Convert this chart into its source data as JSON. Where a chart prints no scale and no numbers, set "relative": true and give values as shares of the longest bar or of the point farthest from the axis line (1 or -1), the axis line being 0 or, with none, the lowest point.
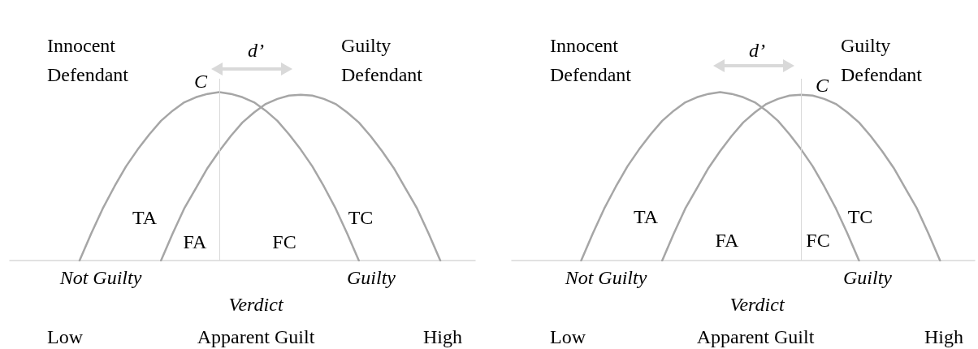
{
  "chart_data": [
    {
      "type": "line",
      "relative": true,
      "xlabel": "Apparent Guilt",
      "marker": "none",
      "categories": [
        null,
        null,
        null,
        null,
        null,
        null,
        null,
        null,
        null,
        null,
        null,
        null,
        null,
        null,
        null,
        null,
        null,
        null,
        null,
        null,
        null,
        null,
        null,
        null,
        null,
        null,
        null,
        null,
        null,
        null,
        null,
        null,
        null,
        null,
        null,
        null,
        null,
        null,
        null,
        null,
        null
      ],
      "series": [
        {
          "name": "Innocent Defendant",
          "color": "#a6a6a6",
          "values": [
            null,
            null,
            null,
            null,
            null,
            null,
            0,
            0.16,
            0.31,
            0.44,
            0.56,
            0.66,
            0.75,
            0.83,
            0.89,
            0.94,
            0.97,
            0.99,
            1,
            0.99,
            0.97,
            0.94,
            0.89,
            0.83,
            0.75,
            0.66,
            0.56,
            0.44,
            0.31,
            0.16,
            0,
            null,
            null,
            null,
            null,
            null,
            null,
            null,
            null,
            null,
            null
          ]
        },
        {
          "name": "Guilty Defendant",
          "color": "#a6a6a6",
          "values": [
            null,
            null,
            null,
            null,
            null,
            null,
            null,
            null,
            null,
            null,
            null,
            null,
            null,
            0,
            0.16,
            0.31,
            0.43,
            0.55,
            0.65,
            0.74,
            0.82,
            0.88,
            0.93,
            0.96,
            0.98,
            0.985,
            0.98,
            0.96,
            0.93,
            0.88,
            0.82,
            0.74,
            0.65,
            0.55,
            0.43,
            0.31,
            0.16,
            0,
            null,
            null,
            null
          ]
        }
      ],
      "annotations": [
        "d’",
        "TA",
        "FA",
        "FC",
        "TC",
        "Not Guilty",
        "Guilty",
        "Verdict",
        "Low",
        "High",
        "C"
      ]
    },
    {
      "type": "line",
      "relative": true,
      "xlabel": "Apparent Guilt",
      "marker": "none",
      "categories": [
        null,
        null,
        null,
        null,
        null,
        null,
        null,
        null,
        null,
        null,
        null,
        null,
        null,
        null,
        null,
        null,
        null,
        null,
        null,
        null,
        null,
        null,
        null,
        null,
        null,
        null,
        null,
        null,
        null,
        null,
        null,
        null,
        null,
        null,
        null,
        null,
        null,
        null,
        null,
        null,
        null
      ],
      "series": [
        {
          "name": "Innocent Defendant",
          "color": "#a6a6a6",
          "values": [
            null,
            null,
            null,
            null,
            null,
            null,
            0,
            0.16,
            0.31,
            0.44,
            0.56,
            0.66,
            0.75,
            0.83,
            0.89,
            0.94,
            0.97,
            0.99,
            1,
            0.99,
            0.97,
            0.94,
            0.89,
            0.83,
            0.75,
            0.66,
            0.56,
            0.44,
            0.31,
            0.16,
            0,
            null,
            null,
            null,
            null,
            null,
            null,
            null,
            null,
            null,
            null
          ]
        },
        {
          "name": "Guilty Defendant",
          "color": "#a6a6a6",
          "values": [
            null,
            null,
            null,
            null,
            null,
            null,
            null,
            null,
            null,
            null,
            null,
            null,
            null,
            0,
            0.16,
            0.31,
            0.43,
            0.55,
            0.65,
            0.74,
            0.82,
            0.88,
            0.93,
            0.96,
            0.98,
            0.985,
            0.98,
            0.96,
            0.93,
            0.88,
            0.82,
            0.74,
            0.65,
            0.55,
            0.43,
            0.31,
            0.16,
            0,
            null,
            null,
            null
          ]
        }
      ],
      "annotations": [
        "d’",
        "TA",
        "FA",
        "FC",
        "TC",
        "Not Guilty",
        "Guilty",
        "Verdict",
        "Low",
        "High",
        "C"
      ]
    }
  ]
}
